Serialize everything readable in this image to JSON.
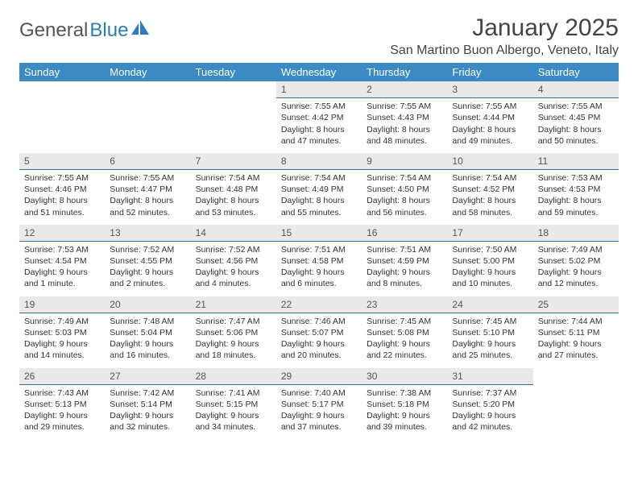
{
  "brand": {
    "name1": "General",
    "name2": "Blue"
  },
  "title": "January 2025",
  "location": "San Martino Buon Albergo, Veneto, Italy",
  "colors": {
    "header_bg": "#3b8ac4",
    "header_text": "#ffffff",
    "daynum_bg": "#e9e9e9",
    "daynum_border": "#2f6fa3",
    "body_text": "#333333",
    "title_text": "#444444",
    "logo_gray": "#555555",
    "logo_blue": "#2b7bbf",
    "page_bg": "#ffffff"
  },
  "typography": {
    "month_title_fontsize": 30,
    "location_fontsize": 16,
    "day_header_fontsize": 13,
    "daynum_fontsize": 12,
    "body_fontsize": 10.5
  },
  "day_headers": [
    "Sunday",
    "Monday",
    "Tuesday",
    "Wednesday",
    "Thursday",
    "Friday",
    "Saturday"
  ],
  "weeks": [
    [
      {
        "n": "",
        "lines": []
      },
      {
        "n": "",
        "lines": []
      },
      {
        "n": "",
        "lines": []
      },
      {
        "n": "1",
        "lines": [
          "Sunrise: 7:55 AM",
          "Sunset: 4:42 PM",
          "Daylight: 8 hours",
          "and 47 minutes."
        ]
      },
      {
        "n": "2",
        "lines": [
          "Sunrise: 7:55 AM",
          "Sunset: 4:43 PM",
          "Daylight: 8 hours",
          "and 48 minutes."
        ]
      },
      {
        "n": "3",
        "lines": [
          "Sunrise: 7:55 AM",
          "Sunset: 4:44 PM",
          "Daylight: 8 hours",
          "and 49 minutes."
        ]
      },
      {
        "n": "4",
        "lines": [
          "Sunrise: 7:55 AM",
          "Sunset: 4:45 PM",
          "Daylight: 8 hours",
          "and 50 minutes."
        ]
      }
    ],
    [
      {
        "n": "5",
        "lines": [
          "Sunrise: 7:55 AM",
          "Sunset: 4:46 PM",
          "Daylight: 8 hours",
          "and 51 minutes."
        ]
      },
      {
        "n": "6",
        "lines": [
          "Sunrise: 7:55 AM",
          "Sunset: 4:47 PM",
          "Daylight: 8 hours",
          "and 52 minutes."
        ]
      },
      {
        "n": "7",
        "lines": [
          "Sunrise: 7:54 AM",
          "Sunset: 4:48 PM",
          "Daylight: 8 hours",
          "and 53 minutes."
        ]
      },
      {
        "n": "8",
        "lines": [
          "Sunrise: 7:54 AM",
          "Sunset: 4:49 PM",
          "Daylight: 8 hours",
          "and 55 minutes."
        ]
      },
      {
        "n": "9",
        "lines": [
          "Sunrise: 7:54 AM",
          "Sunset: 4:50 PM",
          "Daylight: 8 hours",
          "and 56 minutes."
        ]
      },
      {
        "n": "10",
        "lines": [
          "Sunrise: 7:54 AM",
          "Sunset: 4:52 PM",
          "Daylight: 8 hours",
          "and 58 minutes."
        ]
      },
      {
        "n": "11",
        "lines": [
          "Sunrise: 7:53 AM",
          "Sunset: 4:53 PM",
          "Daylight: 8 hours",
          "and 59 minutes."
        ]
      }
    ],
    [
      {
        "n": "12",
        "lines": [
          "Sunrise: 7:53 AM",
          "Sunset: 4:54 PM",
          "Daylight: 9 hours",
          "and 1 minute."
        ]
      },
      {
        "n": "13",
        "lines": [
          "Sunrise: 7:52 AM",
          "Sunset: 4:55 PM",
          "Daylight: 9 hours",
          "and 2 minutes."
        ]
      },
      {
        "n": "14",
        "lines": [
          "Sunrise: 7:52 AM",
          "Sunset: 4:56 PM",
          "Daylight: 9 hours",
          "and 4 minutes."
        ]
      },
      {
        "n": "15",
        "lines": [
          "Sunrise: 7:51 AM",
          "Sunset: 4:58 PM",
          "Daylight: 9 hours",
          "and 6 minutes."
        ]
      },
      {
        "n": "16",
        "lines": [
          "Sunrise: 7:51 AM",
          "Sunset: 4:59 PM",
          "Daylight: 9 hours",
          "and 8 minutes."
        ]
      },
      {
        "n": "17",
        "lines": [
          "Sunrise: 7:50 AM",
          "Sunset: 5:00 PM",
          "Daylight: 9 hours",
          "and 10 minutes."
        ]
      },
      {
        "n": "18",
        "lines": [
          "Sunrise: 7:49 AM",
          "Sunset: 5:02 PM",
          "Daylight: 9 hours",
          "and 12 minutes."
        ]
      }
    ],
    [
      {
        "n": "19",
        "lines": [
          "Sunrise: 7:49 AM",
          "Sunset: 5:03 PM",
          "Daylight: 9 hours",
          "and 14 minutes."
        ]
      },
      {
        "n": "20",
        "lines": [
          "Sunrise: 7:48 AM",
          "Sunset: 5:04 PM",
          "Daylight: 9 hours",
          "and 16 minutes."
        ]
      },
      {
        "n": "21",
        "lines": [
          "Sunrise: 7:47 AM",
          "Sunset: 5:06 PM",
          "Daylight: 9 hours",
          "and 18 minutes."
        ]
      },
      {
        "n": "22",
        "lines": [
          "Sunrise: 7:46 AM",
          "Sunset: 5:07 PM",
          "Daylight: 9 hours",
          "and 20 minutes."
        ]
      },
      {
        "n": "23",
        "lines": [
          "Sunrise: 7:45 AM",
          "Sunset: 5:08 PM",
          "Daylight: 9 hours",
          "and 22 minutes."
        ]
      },
      {
        "n": "24",
        "lines": [
          "Sunrise: 7:45 AM",
          "Sunset: 5:10 PM",
          "Daylight: 9 hours",
          "and 25 minutes."
        ]
      },
      {
        "n": "25",
        "lines": [
          "Sunrise: 7:44 AM",
          "Sunset: 5:11 PM",
          "Daylight: 9 hours",
          "and 27 minutes."
        ]
      }
    ],
    [
      {
        "n": "26",
        "lines": [
          "Sunrise: 7:43 AM",
          "Sunset: 5:13 PM",
          "Daylight: 9 hours",
          "and 29 minutes."
        ]
      },
      {
        "n": "27",
        "lines": [
          "Sunrise: 7:42 AM",
          "Sunset: 5:14 PM",
          "Daylight: 9 hours",
          "and 32 minutes."
        ]
      },
      {
        "n": "28",
        "lines": [
          "Sunrise: 7:41 AM",
          "Sunset: 5:15 PM",
          "Daylight: 9 hours",
          "and 34 minutes."
        ]
      },
      {
        "n": "29",
        "lines": [
          "Sunrise: 7:40 AM",
          "Sunset: 5:17 PM",
          "Daylight: 9 hours",
          "and 37 minutes."
        ]
      },
      {
        "n": "30",
        "lines": [
          "Sunrise: 7:38 AM",
          "Sunset: 5:18 PM",
          "Daylight: 9 hours",
          "and 39 minutes."
        ]
      },
      {
        "n": "31",
        "lines": [
          "Sunrise: 7:37 AM",
          "Sunset: 5:20 PM",
          "Daylight: 9 hours",
          "and 42 minutes."
        ]
      },
      {
        "n": "",
        "lines": []
      }
    ]
  ]
}
